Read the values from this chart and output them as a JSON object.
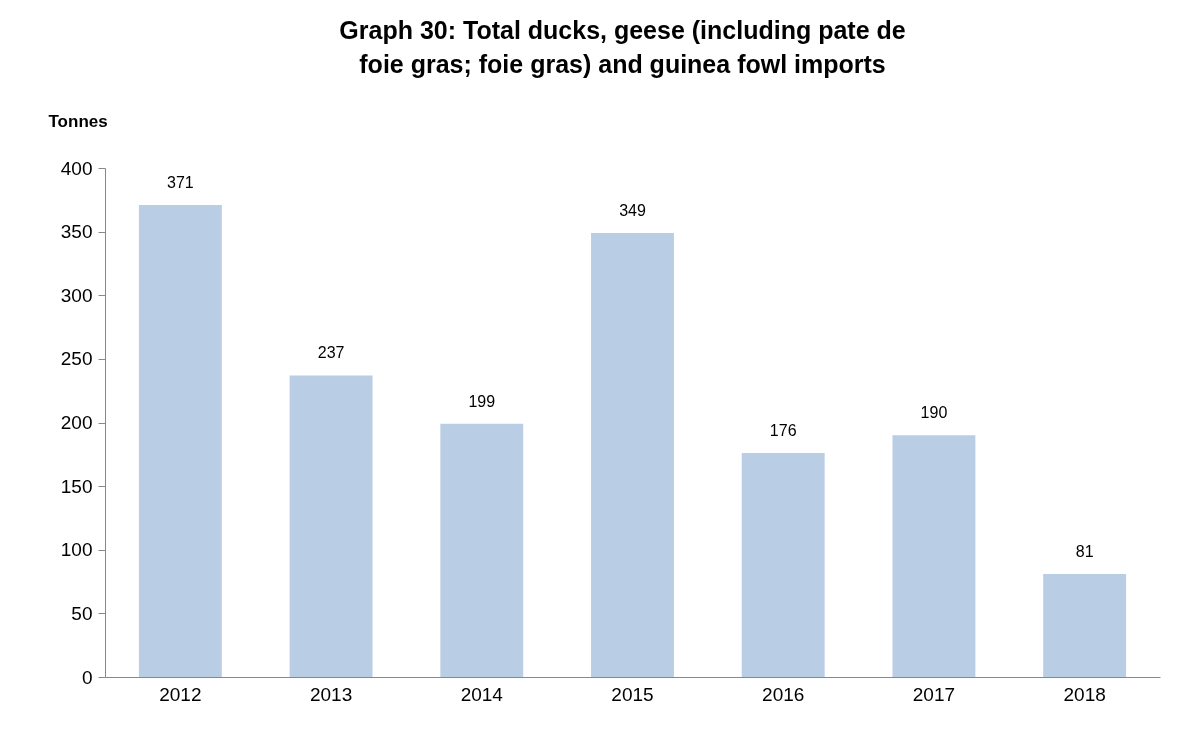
{
  "chart_data": {
    "type": "bar",
    "title": "Graph 30: Total ducks, geese (including pate de foie gras; foie gras) and guinea fowl imports",
    "ylabel": "Tonnes",
    "categories": [
      "2012",
      "2013",
      "2014",
      "2015",
      "2016",
      "2017",
      "2018"
    ],
    "values": [
      371,
      237,
      199,
      349,
      176,
      190,
      81
    ],
    "color": "#b9cde5",
    "ylim": [
      0,
      400
    ],
    "yticks": [
      0,
      50,
      100,
      150,
      200,
      250,
      300,
      350,
      400
    ],
    "data_labels": true
  }
}
